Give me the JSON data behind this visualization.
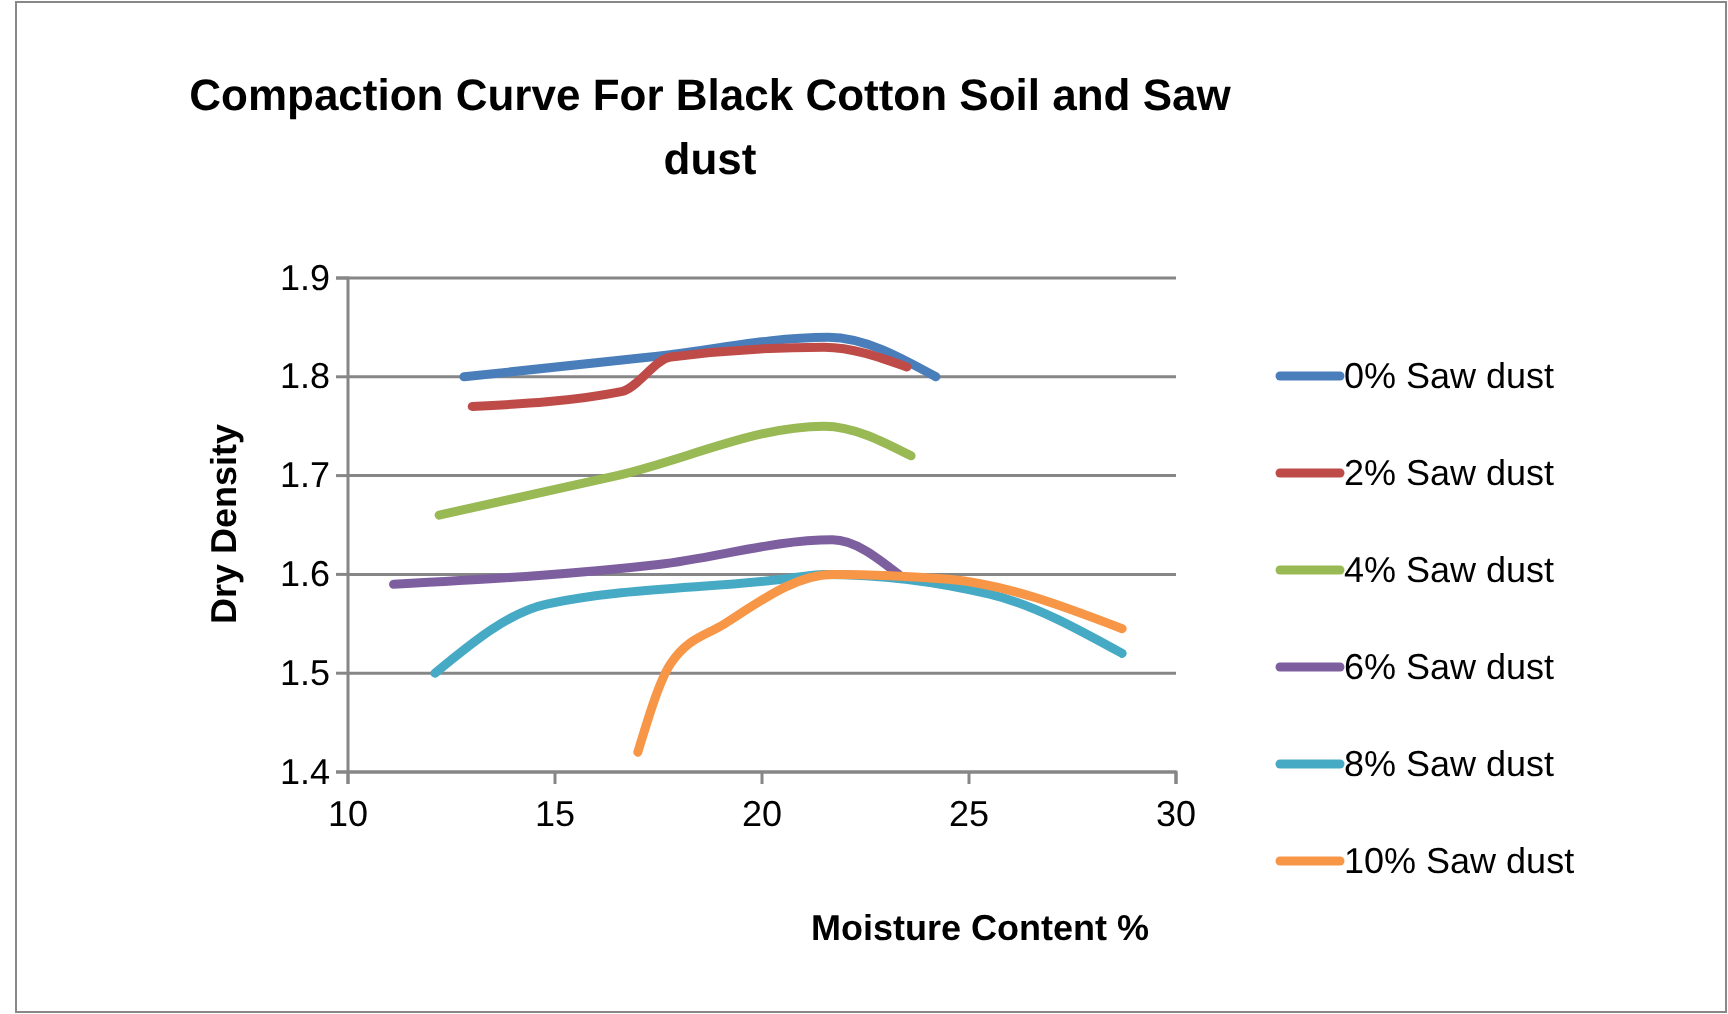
{
  "chart_data": {
    "type": "line",
    "title": "Compaction Curve For Black Cotton Soil and Saw dust",
    "xlabel": "Moisture Content %",
    "ylabel": "Dry Density",
    "xlim": [
      10,
      30
    ],
    "xticks": [
      10,
      15,
      20,
      25,
      30
    ],
    "ylim": [
      1.4,
      1.9
    ],
    "yticks": [
      {
        "value": 1.4,
        "label": "1.4"
      },
      {
        "value": 1.5,
        "label": "1.5"
      },
      {
        "value": 1.6,
        "label": "1.6"
      },
      {
        "value": 1.7,
        "label": "1.7"
      },
      {
        "value": 1.8,
        "label": "1.8"
      },
      {
        "value": 1.9,
        "label": "1.9"
      }
    ],
    "grid": "y",
    "legend": "right",
    "marker": "none",
    "line_style": "solid",
    "series": [
      {
        "name": "0% Saw dust",
        "color": "#4a7ebb",
        "x": [
          12.8,
          17.3,
          21.6,
          24.2
        ],
        "values": [
          1.8,
          1.82,
          1.84,
          1.8
        ]
      },
      {
        "name": "2% Saw dust",
        "color": "#be4b48",
        "x": [
          13.0,
          16.6,
          17.8,
          21.5,
          23.5
        ],
        "values": [
          1.77,
          1.785,
          1.82,
          1.83,
          1.81
        ]
      },
      {
        "name": "4% Saw dust",
        "color": "#98b954",
        "x": [
          12.2,
          16.5,
          21.5,
          23.6
        ],
        "values": [
          1.66,
          1.7,
          1.75,
          1.72
        ]
      },
      {
        "name": "6% Saw dust",
        "color": "#7d5fa0",
        "x": [
          11.1,
          17.5,
          21.7,
          23.3
        ],
        "values": [
          1.59,
          1.61,
          1.635,
          1.6
        ]
      },
      {
        "name": "8% Saw dust",
        "color": "#46aac5",
        "x": [
          12.1,
          14.8,
          20.5,
          21.5,
          25.5,
          28.7
        ],
        "values": [
          1.5,
          1.57,
          1.595,
          1.6,
          1.58,
          1.52
        ]
      },
      {
        "name": "10% Saw dust",
        "color": "#f79646",
        "x": [
          17.0,
          17.8,
          19.1,
          21.7,
          24.5,
          28.7
        ],
        "values": [
          1.42,
          1.51,
          1.55,
          1.6,
          1.595,
          1.545
        ]
      }
    ]
  }
}
